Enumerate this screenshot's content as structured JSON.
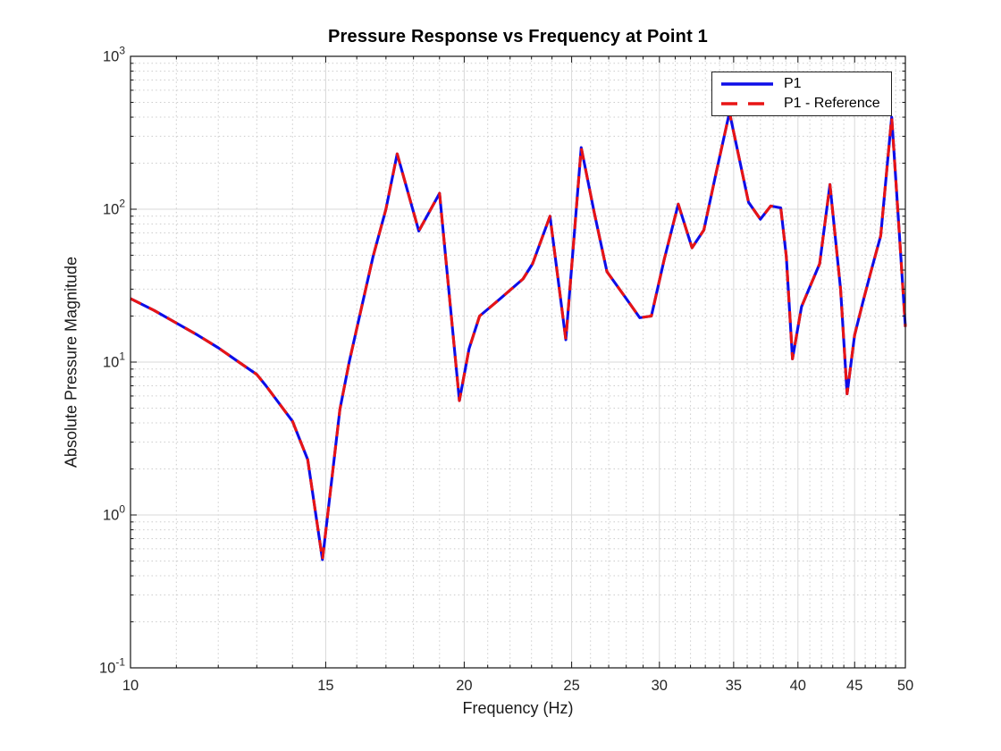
{
  "chart": {
    "title": "Pressure Response vs Frequency at Point 1",
    "xlabel": "Frequency (Hz)",
    "ylabel": "Absolute Pressure Magnitude"
  },
  "legend": {
    "position": "northeast",
    "entries": [
      {
        "label": "P1",
        "color": "#0d0de8",
        "line_style": "solid"
      },
      {
        "label": "P1 - Reference",
        "color": "#e81414",
        "line_style": "dashed"
      }
    ]
  },
  "chart_data": {
    "type": "line",
    "title": "Pressure Response vs Frequency at Point 1",
    "xlabel": "Frequency (Hz)",
    "ylabel": "Absolute Pressure Magnitude",
    "x_scale": "log",
    "y_scale": "log",
    "xlim": [
      10,
      50
    ],
    "ylim": [
      0.1,
      1000
    ],
    "x_ticks": [
      10,
      15,
      20,
      25,
      30,
      35,
      40,
      45,
      50
    ],
    "y_ticks": [
      0.1,
      1,
      10,
      100,
      1000
    ],
    "grid": "major+minor",
    "legend_position": "northeast",
    "axis_color": "#141414",
    "tick_label_color": "#262626",
    "major_grid_color": "#d9d9d9",
    "minor_grid_color": "#cccccc",
    "x": [
      10,
      10.5,
      11,
      11.5,
      12,
      12.5,
      13,
      13.25,
      14,
      14.45,
      14.9,
      15.45,
      15.75,
      16.55,
      17,
      17.4,
      18.2,
      19,
      19.8,
      20.2,
      20.65,
      21.5,
      22.6,
      23.05,
      23.9,
      24.7,
      25.5,
      26.2,
      26.9,
      28,
      28.8,
      29.5,
      30.3,
      31.2,
      32.1,
      32.9,
      33.7,
      34.7,
      36.1,
      37,
      37.8,
      38.6,
      39.05,
      39.55,
      40.3,
      41,
      41.85,
      42.75,
      43.7,
      44.3,
      45,
      45.8,
      46.5,
      47.5,
      48.6,
      49.35,
      50
    ],
    "series": [
      {
        "name": "P1",
        "color": "#0d0de8",
        "line_style": "solid",
        "line_width": 3.1,
        "values": [
          26,
          21.8,
          18,
          15,
          12.4,
          10.1,
          8.3,
          7,
          4.1,
          2.3,
          0.51,
          4.9,
          10,
          49,
          100,
          230,
          72,
          127,
          5.6,
          12.2,
          20,
          25.6,
          35,
          44,
          90,
          14,
          253,
          95,
          39,
          26,
          19.5,
          20,
          47,
          108,
          56,
          73,
          165,
          430,
          111,
          86,
          105,
          102,
          49,
          10.5,
          23,
          31,
          44,
          145,
          30,
          6.2,
          15,
          25,
          38,
          67,
          400,
          73,
          17
        ]
      },
      {
        "name": "P1 - Reference",
        "color": "#e81414",
        "line_style": "dashed",
        "line_width": 3.1,
        "values": [
          26,
          21.8,
          18,
          15,
          12.4,
          10.1,
          8.3,
          7,
          4.1,
          2.3,
          0.51,
          4.9,
          10,
          49,
          100,
          230,
          72,
          127,
          5.6,
          12.2,
          20,
          25.6,
          35,
          44,
          90,
          14,
          253,
          95,
          39,
          26,
          19.5,
          20,
          47,
          108,
          56,
          73,
          165,
          430,
          111,
          86,
          105,
          102,
          49,
          10.5,
          23,
          31,
          44,
          145,
          30,
          6.2,
          15,
          25,
          38,
          67,
          400,
          73,
          17
        ]
      }
    ]
  }
}
